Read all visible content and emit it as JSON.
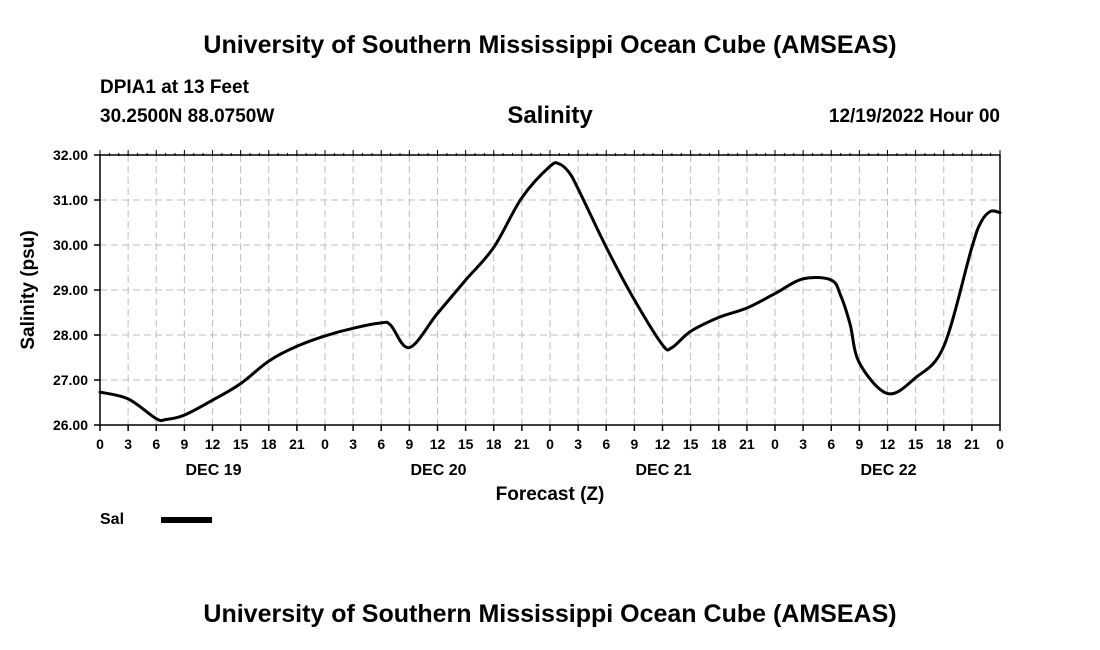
{
  "header": {
    "title": "University of Southern Mississippi Ocean Cube (AMSEAS)",
    "station": "DPIA1 at 13 Feet",
    "coords": "30.2500N  88.0750W",
    "plot_title": "Salinity",
    "datetime": "12/19/2022 Hour 00"
  },
  "footer": {
    "title": "University of Southern Mississippi Ocean Cube (AMSEAS)"
  },
  "chart_data": {
    "type": "line",
    "title": "Salinity",
    "xlabel": "Forecast (Z)",
    "ylabel": "Salinity (psu)",
    "ylim": [
      26.0,
      32.0
    ],
    "yticks": [
      "26.00",
      "27.00",
      "28.00",
      "29.00",
      "30.00",
      "31.00",
      "32.00"
    ],
    "xlim": [
      0,
      96
    ],
    "x_tick_labels": [
      "0",
      "3",
      "6",
      "9",
      "12",
      "15",
      "18",
      "21",
      "0",
      "3",
      "6",
      "9",
      "12",
      "15",
      "18",
      "21",
      "0",
      "3",
      "6",
      "9",
      "12",
      "15",
      "18",
      "21",
      "0",
      "3",
      "6",
      "9",
      "12",
      "15",
      "18",
      "21",
      "0"
    ],
    "day_labels": [
      {
        "label": "DEC 19",
        "hour": 12
      },
      {
        "label": "DEC 20",
        "hour": 36
      },
      {
        "label": "DEC 21",
        "hour": 60
      },
      {
        "label": "DEC 22",
        "hour": 84
      }
    ],
    "grid": true,
    "legend": "bottom-left",
    "series": [
      {
        "name": "Sal",
        "x": [
          0,
          3,
          6,
          7,
          9,
          12,
          15,
          18,
          21,
          24,
          27,
          30,
          31,
          33,
          36,
          39,
          42,
          45,
          48,
          49,
          50,
          51,
          54,
          57,
          60,
          61,
          63,
          66,
          69,
          72,
          75,
          78,
          79,
          80,
          81,
          84,
          87,
          90,
          93,
          94,
          95,
          96
        ],
        "values": [
          26.73,
          26.58,
          26.14,
          26.12,
          26.22,
          26.55,
          26.92,
          27.42,
          27.75,
          27.98,
          28.15,
          28.27,
          28.22,
          27.72,
          28.48,
          29.22,
          29.95,
          31.05,
          31.75,
          31.8,
          31.62,
          31.25,
          29.95,
          28.78,
          27.78,
          27.72,
          28.08,
          28.39,
          28.6,
          28.92,
          29.25,
          29.22,
          28.88,
          28.25,
          27.38,
          26.7,
          27.05,
          27.75,
          29.95,
          30.52,
          30.75,
          30.72
        ]
      }
    ]
  }
}
